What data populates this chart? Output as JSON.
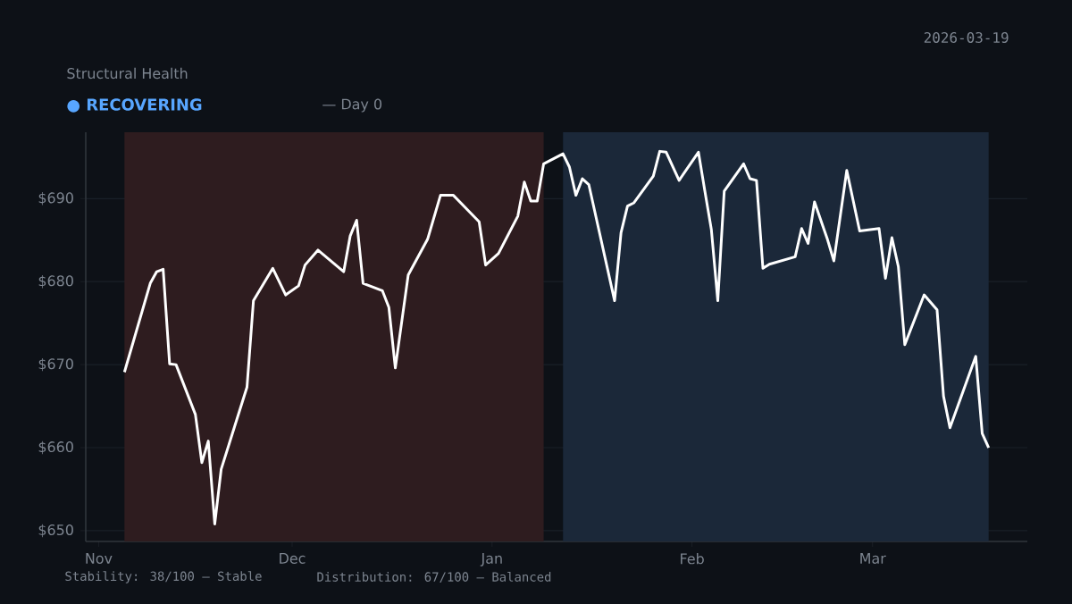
{
  "chart_data": {
    "type": "line",
    "subtitle": "Structural Health",
    "annotations": [
      "● RECOVERING",
      "— Day 0",
      "2026-03-19",
      "Stability: 38/100 — Stable",
      "Distribution: 67/100 — Balanced"
    ],
    "x": [
      "2025-11-05",
      "2025-11-09",
      "2025-11-10",
      "2025-11-11",
      "2025-11-12",
      "2025-11-13",
      "2025-11-16",
      "2025-11-17",
      "2025-11-18",
      "2025-11-19",
      "2025-11-20",
      "2025-11-24",
      "2025-11-25",
      "2025-11-28",
      "2025-11-30",
      "2025-12-02",
      "2025-12-03",
      "2025-12-05",
      "2025-12-09",
      "2025-12-10",
      "2025-12-11",
      "2025-12-12",
      "2025-12-15",
      "2025-12-16",
      "2025-12-17",
      "2025-12-19",
      "2025-12-22",
      "2025-12-24",
      "2025-12-26",
      "2025-12-30",
      "2025-12-31",
      "2026-01-02",
      "2026-01-05",
      "2026-01-06",
      "2026-01-07",
      "2026-01-08",
      "2026-01-09",
      "2026-01-12",
      "2026-01-13",
      "2026-01-14",
      "2026-01-15",
      "2026-01-16",
      "2026-01-20",
      "2026-01-21",
      "2026-01-22",
      "2026-01-23",
      "2026-01-26",
      "2026-01-27",
      "2026-01-28",
      "2026-01-30",
      "2026-02-02",
      "2026-02-03",
      "2026-02-04",
      "2026-02-05",
      "2026-02-06",
      "2026-02-09",
      "2026-02-10",
      "2026-02-11",
      "2026-02-12",
      "2026-02-13",
      "2026-02-17",
      "2026-02-18",
      "2026-02-19",
      "2026-02-20",
      "2026-02-22",
      "2026-02-23",
      "2026-02-25",
      "2026-02-27",
      "2026-03-02",
      "2026-03-03",
      "2026-03-04",
      "2026-03-05",
      "2026-03-06",
      "2026-03-09",
      "2026-03-11",
      "2026-03-12",
      "2026-03-13",
      "2026-03-17",
      "2026-03-18",
      "2026-03-19"
    ],
    "values": [
      669.1,
      679.8,
      681.2,
      681.5,
      670.1,
      670.0,
      664.0,
      658.2,
      660.8,
      650.8,
      657.4,
      667.3,
      677.7,
      681.6,
      678.4,
      679.5,
      682.0,
      683.8,
      681.2,
      685.5,
      687.4,
      679.8,
      678.9,
      676.9,
      669.6,
      680.8,
      685.1,
      690.4,
      690.4,
      687.2,
      682.0,
      683.4,
      687.9,
      692.0,
      689.7,
      689.7,
      694.2,
      695.4,
      693.8,
      690.4,
      692.4,
      691.7,
      677.7,
      685.9,
      689.1,
      689.5,
      692.7,
      695.7,
      695.6,
      692.2,
      695.6,
      690.9,
      686.3,
      677.7,
      690.9,
      694.2,
      692.4,
      692.2,
      681.6,
      682.1,
      683.0,
      686.4,
      684.6,
      689.6,
      685.1,
      682.5,
      693.4,
      686.1,
      686.4,
      680.4,
      685.3,
      681.8,
      672.4,
      678.4,
      676.6,
      666.2,
      662.4,
      671.0,
      661.7,
      660.0
    ],
    "color": "#ffffff",
    "xlim": [
      "2025-10-30",
      "2026-03-25"
    ],
    "xticks": [
      {
        "value": "2025-11-01",
        "label": "Nov"
      },
      {
        "value": "2025-12-01",
        "label": "Dec"
      },
      {
        "value": "2026-01-01",
        "label": "Jan"
      },
      {
        "value": "2026-02-01",
        "label": "Feb"
      },
      {
        "value": "2026-03-01",
        "label": "Mar"
      }
    ],
    "ylim": [
      648.7,
      698
    ],
    "yticks": [
      {
        "value": 650,
        "label": "$650"
      },
      {
        "value": 660,
        "label": "$660"
      },
      {
        "value": 670,
        "label": "$670"
      },
      {
        "value": 680,
        "label": "$680"
      },
      {
        "value": 690,
        "label": "$690"
      }
    ],
    "bands": [
      {
        "axis": "x",
        "from": "2025-11-05",
        "to": "2026-01-09",
        "color": "#2e1c1f"
      },
      {
        "axis": "x",
        "from": "2026-01-12",
        "to": "2026-03-19",
        "color": "#1b2839"
      }
    ],
    "grid": "y"
  }
}
